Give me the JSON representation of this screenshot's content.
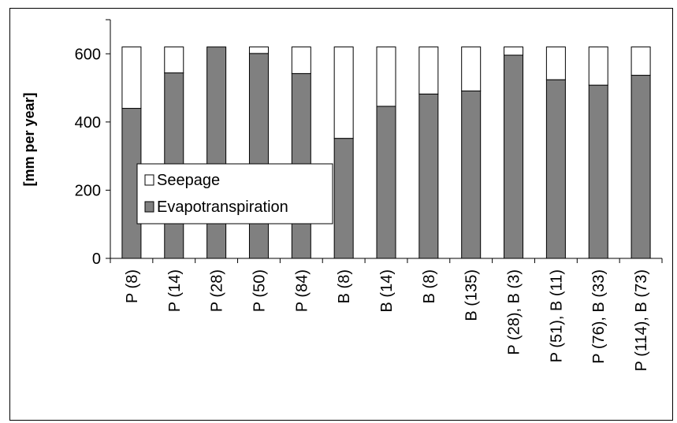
{
  "chart_data": {
    "type": "bar",
    "stacked": true,
    "title": "",
    "xlabel": "",
    "ylabel": "[mm per year]",
    "ylim": [
      0,
      700
    ],
    "yticks": [
      0,
      200,
      400,
      600
    ],
    "grid": false,
    "legend_position": "left-center",
    "categories": [
      "P (8)",
      "P (14)",
      "P (28)",
      "P (50)",
      "P (84)",
      "B (8)",
      "B (14)",
      "B (8)",
      "B (135)",
      "P (28), B (3)",
      "P (51), B (11)",
      "P (76), B (33)",
      "P (114), B (73)"
    ],
    "series": [
      {
        "name": "Evapotranspiration",
        "color": "#808080",
        "values": [
          440,
          544,
          620,
          601,
          542,
          352,
          446,
          482,
          491,
          596,
          524,
          508,
          537
        ]
      },
      {
        "name": "Seepage",
        "color": "#ffffff",
        "values": [
          180,
          76,
          0,
          19,
          78,
          268,
          174,
          138,
          129,
          24,
          96,
          112,
          83
        ]
      }
    ],
    "legend": [
      {
        "name": "Seepage",
        "color": "#ffffff"
      },
      {
        "name": "Evapotranspiration",
        "color": "#808080"
      }
    ]
  }
}
